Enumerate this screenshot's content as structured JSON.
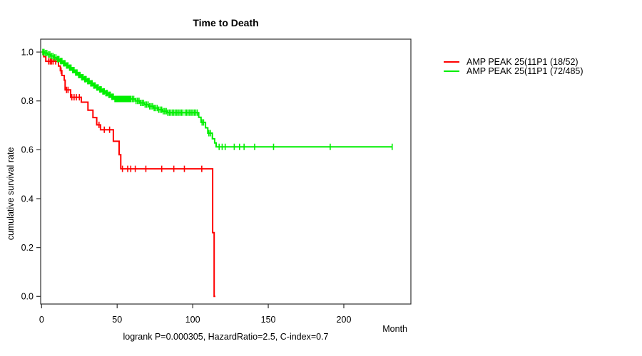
{
  "title": "Time to Death",
  "footer": {
    "stats_line": "logrank P=0.000305, HazardRatio=2.5, C-index=0.7"
  },
  "axes": {
    "x_label": "Month",
    "y_label": "cumulative survival rate"
  },
  "legend": {
    "items": [
      {
        "label": "AMP PEAK 25(11P1 (18/52)",
        "color": "#FF0000"
      },
      {
        "label": "AMP PEAK 25(11P1 (72/485)",
        "color": "#00EE00"
      }
    ]
  },
  "chart_data": {
    "type": "line",
    "subtype": "kaplan-meier-step",
    "title": "Time to Death",
    "xlabel": "Month",
    "ylabel": "cumulative survival rate",
    "xlim": [
      0,
      244
    ],
    "ylim": [
      0,
      1
    ],
    "x_ticks": [
      0,
      50,
      100,
      150,
      200
    ],
    "y_ticks": [
      1.0,
      0.8,
      0.6,
      0.4,
      0.2,
      0.0
    ],
    "grid": false,
    "legend_position": "right-outside",
    "annotation": "logrank P=0.000305, HazardRatio=2.5, C-index=0.7",
    "series": [
      {
        "name": "AMP PEAK 25(11P1 (18/52)",
        "color": "#FF0000",
        "events_total": "18/52",
        "end_month": 115,
        "steps": [
          [
            0,
            1.0
          ],
          [
            1.4,
            0.981
          ],
          [
            2.8,
            0.962
          ],
          [
            11.2,
            0.943
          ],
          [
            12.4,
            0.924
          ],
          [
            13.4,
            0.904
          ],
          [
            15.0,
            0.885
          ],
          [
            15.6,
            0.845
          ],
          [
            19.2,
            0.815
          ],
          [
            26.3,
            0.795
          ],
          [
            30.7,
            0.762
          ],
          [
            34.0,
            0.732
          ],
          [
            36.5,
            0.702
          ],
          [
            39.0,
            0.682
          ],
          [
            47.5,
            0.635
          ],
          [
            51.3,
            0.58
          ],
          [
            52.4,
            0.522
          ],
          [
            113.2,
            0.261
          ],
          [
            114.2,
            0.0
          ]
        ],
        "censor_months": [
          4.7,
          5.7,
          6.6,
          7.6,
          9.3,
          12.9,
          16.5,
          17.5,
          20,
          21.5,
          23,
          25,
          38,
          41.5,
          45,
          53.5,
          57,
          59,
          62,
          69,
          79.5,
          87.5,
          94.5,
          106
        ]
      },
      {
        "name": "AMP PEAK 25(11P1 (72/485)",
        "color": "#00EE00",
        "events_total": "72/485",
        "end_month": 232,
        "steps": [
          [
            0,
            1.0
          ],
          [
            2,
            0.996
          ],
          [
            4,
            0.99
          ],
          [
            6,
            0.984
          ],
          [
            8,
            0.978
          ],
          [
            10,
            0.971
          ],
          [
            12,
            0.963
          ],
          [
            14,
            0.954
          ],
          [
            16,
            0.945
          ],
          [
            18,
            0.936
          ],
          [
            20,
            0.926
          ],
          [
            22,
            0.916
          ],
          [
            24,
            0.906
          ],
          [
            26,
            0.897
          ],
          [
            28,
            0.889
          ],
          [
            30,
            0.881
          ],
          [
            32,
            0.872
          ],
          [
            34,
            0.863
          ],
          [
            36,
            0.855
          ],
          [
            38,
            0.847
          ],
          [
            40,
            0.839
          ],
          [
            42,
            0.832
          ],
          [
            44,
            0.825
          ],
          [
            46,
            0.817
          ],
          [
            48,
            0.808
          ],
          [
            62,
            0.8
          ],
          [
            65,
            0.792
          ],
          [
            68,
            0.785
          ],
          [
            71,
            0.778
          ],
          [
            74,
            0.771
          ],
          [
            77,
            0.764
          ],
          [
            80,
            0.758
          ],
          [
            83,
            0.752
          ],
          [
            104,
            0.733
          ],
          [
            105.5,
            0.712
          ],
          [
            108.5,
            0.69
          ],
          [
            110,
            0.668
          ],
          [
            113,
            0.645
          ],
          [
            114.5,
            0.628
          ],
          [
            115.5,
            0.612
          ]
        ],
        "censor_months": [
          0.8,
          1.6,
          2.5,
          3.5,
          4.5,
          5.5,
          6.5,
          7.5,
          8.5,
          9.5,
          10.5,
          11,
          11.5,
          12.5,
          13,
          13.5,
          14.5,
          15,
          15.5,
          16.5,
          17,
          17.5,
          18.5,
          19,
          19.5,
          20.5,
          21,
          21.5,
          22.5,
          23,
          23.5,
          24.5,
          25,
          25.5,
          26.5,
          27,
          27.5,
          28.5,
          29,
          29.5,
          30.5,
          31,
          31.5,
          32.5,
          33,
          33.5,
          34.5,
          35,
          35.5,
          36.5,
          37,
          37.5,
          38.5,
          39,
          39.5,
          40.5,
          41,
          41.5,
          42.5,
          43,
          43.5,
          44.5,
          45,
          45.5,
          46.5,
          47,
          47.5,
          48.5,
          49,
          49.5,
          50,
          50.5,
          51,
          51.5,
          52,
          52.5,
          53,
          53.5,
          54,
          54.5,
          55,
          55.5,
          56,
          56.5,
          57,
          57.5,
          58,
          58.5,
          59,
          60,
          61,
          62.5,
          63.5,
          64.5,
          65.5,
          66.5,
          67.5,
          68.5,
          69.5,
          70.5,
          71.5,
          72.5,
          73.5,
          74.5,
          75.5,
          76.5,
          77.5,
          78.5,
          79.5,
          80.5,
          81.5,
          82.5,
          83.5,
          84.5,
          85.5,
          86.5,
          87.5,
          88.5,
          89.5,
          90.5,
          91.5,
          92.5,
          93.5,
          95,
          96,
          97,
          98,
          99,
          100,
          101,
          102,
          103,
          106.2,
          107.2,
          110.7,
          111.7,
          117.5,
          119.5,
          121.5,
          127.5,
          131,
          134,
          141,
          153.5,
          191,
          232
        ]
      }
    ]
  }
}
